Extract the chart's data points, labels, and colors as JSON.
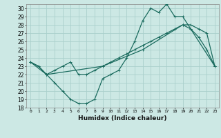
{
  "xlabel": "Humidex (Indice chaleur)",
  "bg_color": "#cce8e4",
  "grid_color": "#aad0cc",
  "line_color": "#1a6b5e",
  "xlim": [
    -0.5,
    23.5
  ],
  "ylim": [
    18,
    30.5
  ],
  "xticks": [
    0,
    1,
    2,
    3,
    4,
    5,
    6,
    7,
    8,
    9,
    10,
    11,
    12,
    13,
    14,
    15,
    16,
    17,
    18,
    19,
    20,
    21,
    22,
    23
  ],
  "yticks": [
    18,
    19,
    20,
    21,
    22,
    23,
    24,
    25,
    26,
    27,
    28,
    29,
    30
  ],
  "line1_x": [
    0,
    1,
    2,
    3,
    4,
    5,
    6,
    7,
    8,
    9,
    10,
    11,
    12,
    13,
    14,
    15,
    16,
    17,
    18,
    19,
    20,
    21,
    22,
    23
  ],
  "line1_y": [
    23.5,
    23,
    22,
    22.5,
    23,
    23.5,
    22,
    22,
    22.5,
    23,
    23.5,
    24,
    24.5,
    25,
    25.5,
    26,
    26.5,
    27,
    27.5,
    28,
    28,
    27.5,
    27,
    23
  ],
  "line2_x": [
    0,
    1,
    2,
    3,
    4,
    5,
    6,
    7,
    8,
    9,
    10,
    11,
    12,
    13,
    14,
    15,
    16,
    17,
    18,
    19,
    20,
    21,
    22,
    23
  ],
  "line2_y": [
    23.5,
    23,
    22,
    21,
    20,
    19,
    18.5,
    18.5,
    19,
    21.5,
    22,
    22.5,
    24,
    26,
    28.5,
    30,
    29.5,
    30.5,
    29,
    29,
    27.5,
    26.5,
    25,
    23
  ],
  "line3_x": [
    0,
    2,
    9,
    14,
    19,
    20,
    23
  ],
  "line3_y": [
    23.5,
    22,
    23,
    25,
    28,
    27.5,
    23
  ]
}
